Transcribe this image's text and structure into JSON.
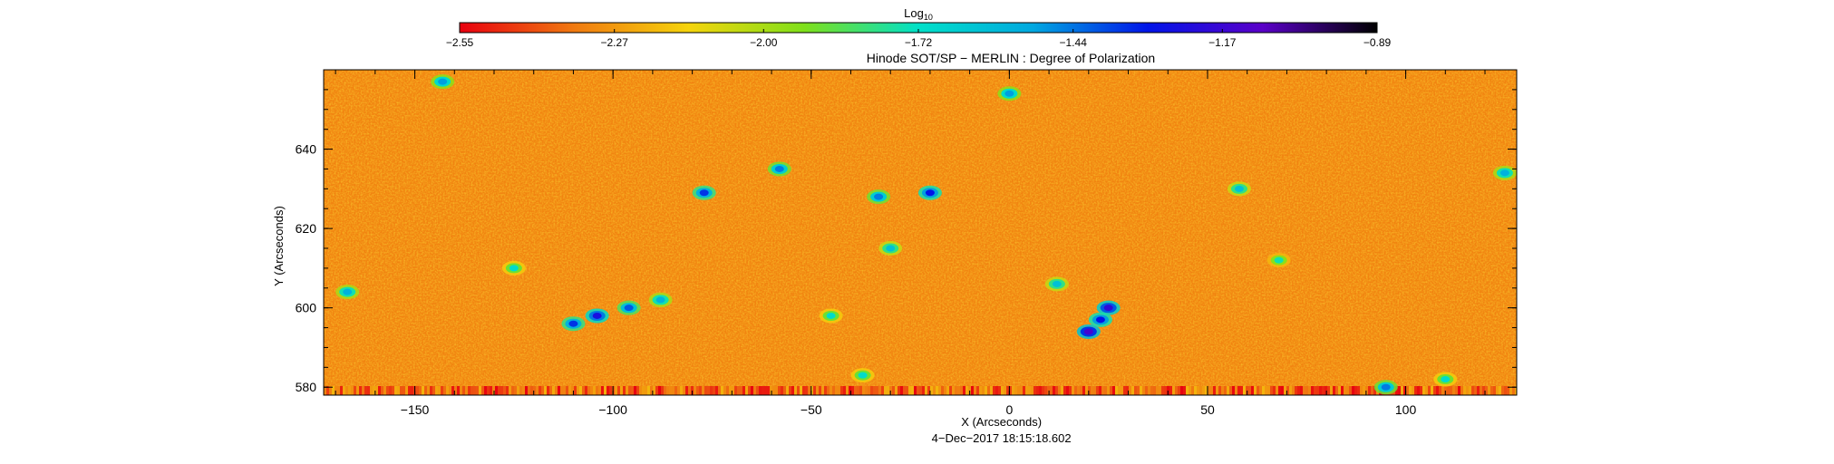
{
  "chart_data": {
    "type": "heatmap",
    "title": "Hinode SOT/SP − MERLIN : Degree of Polarization",
    "xlabel": "X (Arcseconds)",
    "ylabel": "Y (Arcseconds)",
    "date_label": "4−Dec−2017 18:15:18.602",
    "xlim": [
      -173,
      128
    ],
    "ylim": [
      578,
      660
    ],
    "x_ticks": [
      -150,
      -100,
      -50,
      0,
      50,
      100
    ],
    "x_tick_labels": [
      "−150",
      "−100",
      "−50",
      "0",
      "50",
      "100"
    ],
    "y_ticks": [
      580,
      600,
      620,
      640
    ],
    "y_tick_labels": [
      "580",
      "600",
      "620",
      "640"
    ],
    "colorbar": {
      "label_base": "Log",
      "label_sub": "10",
      "scale": "log10",
      "range": [
        -2.55,
        -0.89
      ],
      "ticks": [
        -2.55,
        -2.27,
        -2.0,
        -1.72,
        -1.44,
        -1.17,
        -0.89
      ],
      "tick_labels": [
        "−2.55",
        "−2.27",
        "−2.00",
        "−1.72",
        "−1.44",
        "−1.17",
        "−0.89"
      ],
      "colors": [
        "#e8000f",
        "#f07a10",
        "#f5d40c",
        "#7fe01a",
        "#00e0c8",
        "#00a8e0",
        "#0014e8",
        "#5a00c8",
        "#000000"
      ]
    },
    "background_level": -2.32,
    "features": [
      {
        "x": -104,
        "y": 598,
        "level": -1.25
      },
      {
        "x": -96,
        "y": 600,
        "level": -1.4
      },
      {
        "x": -110,
        "y": 596,
        "level": -1.35
      },
      {
        "x": 20,
        "y": 594,
        "level": -1.15
      },
      {
        "x": 25,
        "y": 600,
        "level": -1.2
      },
      {
        "x": 23,
        "y": 597,
        "level": -1.3
      },
      {
        "x": -20,
        "y": 629,
        "level": -1.3
      },
      {
        "x": -33,
        "y": 628,
        "level": -1.45
      },
      {
        "x": -77,
        "y": 629,
        "level": -1.35
      },
      {
        "x": -58,
        "y": 635,
        "level": -1.45
      },
      {
        "x": -167,
        "y": 604,
        "level": -1.55
      },
      {
        "x": -143,
        "y": 657,
        "level": -1.5
      },
      {
        "x": 0,
        "y": 654,
        "level": -1.5
      },
      {
        "x": 95,
        "y": 580,
        "level": -1.45
      },
      {
        "x": 125,
        "y": 634,
        "level": -1.55
      },
      {
        "x": 58,
        "y": 630,
        "level": -1.6
      },
      {
        "x": -88,
        "y": 602,
        "level": -1.55
      },
      {
        "x": -30,
        "y": 615,
        "level": -1.6
      },
      {
        "x": -37,
        "y": 583,
        "level": -1.7
      },
      {
        "x": 12,
        "y": 606,
        "level": -1.6
      },
      {
        "x": -45,
        "y": 598,
        "level": -1.7
      },
      {
        "x": -125,
        "y": 610,
        "level": -1.7
      },
      {
        "x": 68,
        "y": 612,
        "level": -1.75
      },
      {
        "x": 110,
        "y": 582,
        "level": -1.7
      }
    ]
  }
}
